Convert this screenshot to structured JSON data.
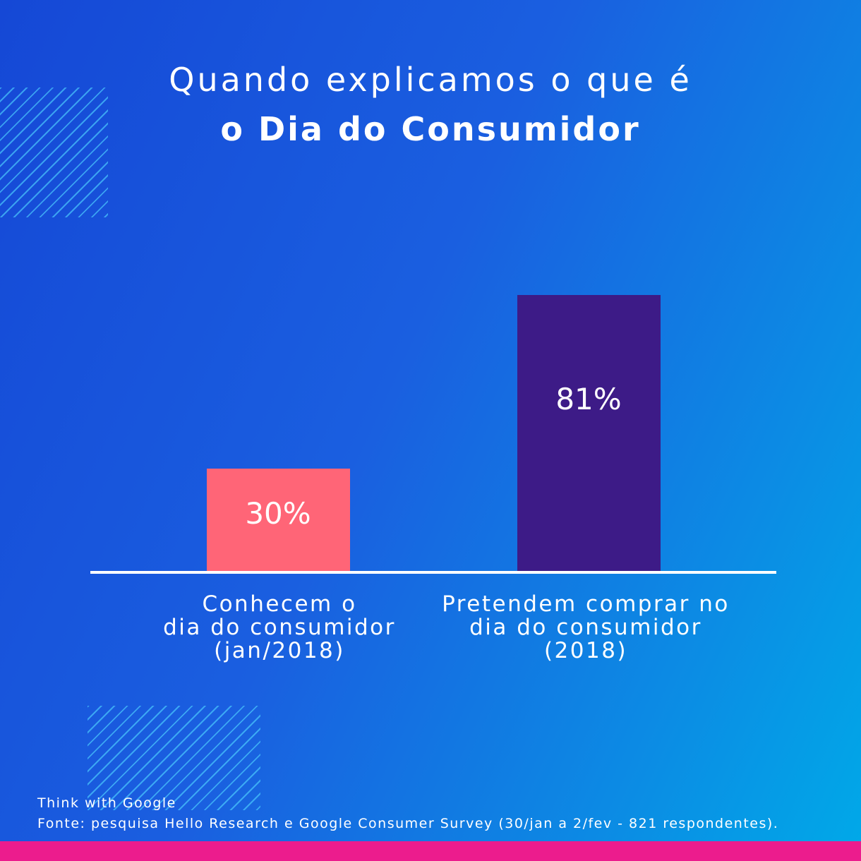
{
  "chart_data": {
    "type": "bar",
    "title_line1": "Quando explicamos o que é",
    "title_line2": "o Dia do Consumidor",
    "categories": [
      "Conhecem o\ndia do consumidor\n(jan/2018)",
      "Pretendem comprar no\ndia do consumidor\n(2018)"
    ],
    "values": [
      30,
      81
    ],
    "value_labels": [
      "30%",
      "81%"
    ],
    "colors": [
      "#ff6577",
      "#3d1b87"
    ],
    "ylim": [
      0,
      100
    ],
    "grid": false,
    "legend": "none"
  },
  "footer": {
    "brand": "Think with Google",
    "source": "Fonte: pesquisa Hello Research e Google Consumer Survey (30/jan a 2/fev - 821 respondentes)."
  },
  "colors": {
    "accent_strip": "#ec1c8d",
    "background": "#1a5fe0"
  }
}
